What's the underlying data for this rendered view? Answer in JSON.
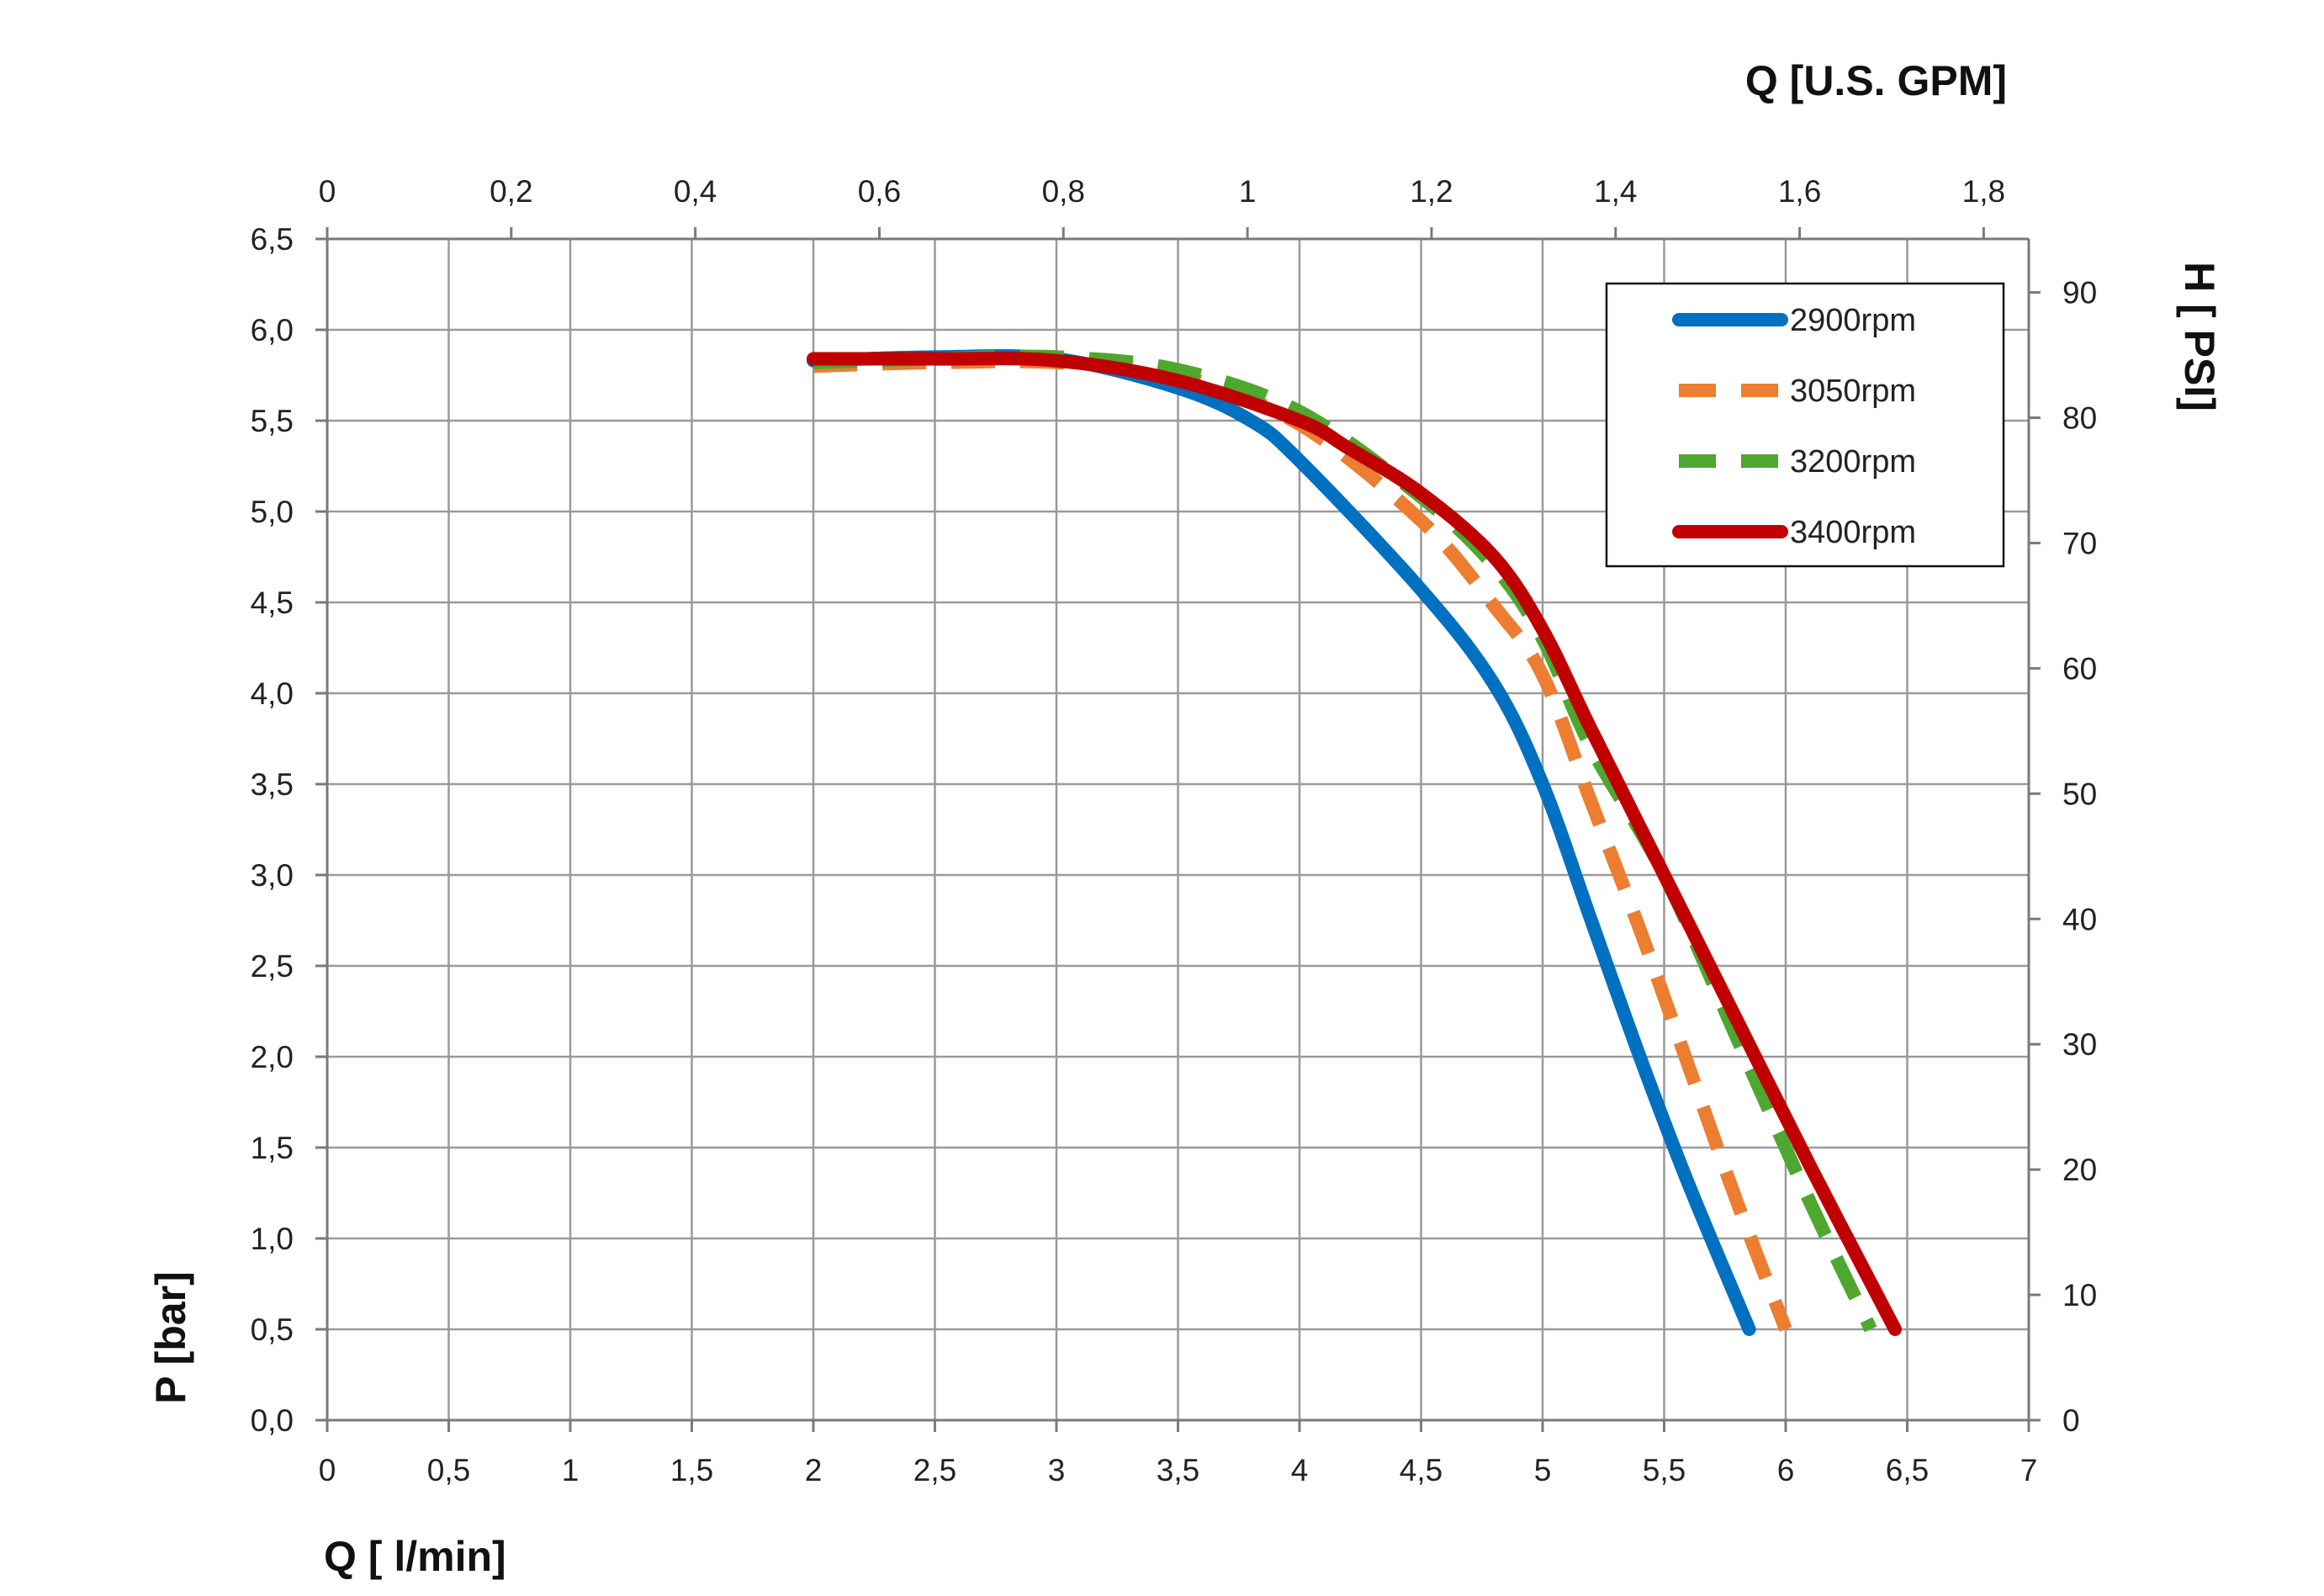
{
  "chart_data": {
    "type": "line",
    "x_bottom": {
      "label": "Q [ l/min]",
      "range": [
        0,
        7
      ],
      "ticks": [
        "0",
        "0,5",
        "1",
        "1,5",
        "2",
        "2,5",
        "3",
        "3,5",
        "4",
        "4,5",
        "5",
        "5,5",
        "6",
        "6,5",
        "7"
      ]
    },
    "x_top": {
      "label": "Q  [U.S. GPM]",
      "range": [
        0,
        1.849
      ],
      "ticks": [
        "0",
        "0,2",
        "0,4",
        "0,6",
        "0,8",
        "1",
        "1,2",
        "1,4",
        "1,6",
        "1,8"
      ],
      "tick_values": [
        0,
        0.2,
        0.4,
        0.6,
        0.8,
        1.0,
        1.2,
        1.4,
        1.6,
        1.8
      ]
    },
    "y_left": {
      "label": "P [bar]",
      "range": [
        0,
        6.5
      ],
      "ticks": [
        "0,0",
        "0,5",
        "1,0",
        "1,5",
        "2,0",
        "2,5",
        "3,0",
        "3,5",
        "4,0",
        "4,5",
        "5,0",
        "5,5",
        "6,0",
        "6,5"
      ]
    },
    "y_right": {
      "label": "H [ PSI]",
      "range": [
        0,
        94.27
      ],
      "ticks": [
        "0",
        "10",
        "20",
        "30",
        "40",
        "50",
        "60",
        "70",
        "80",
        "90"
      ],
      "tick_values": [
        0,
        10,
        20,
        30,
        40,
        50,
        60,
        70,
        80,
        90
      ]
    },
    "grid": true,
    "legend": {
      "position": "top-right"
    },
    "series": [
      {
        "name": "2900rpm",
        "color": "#0070C0",
        "dash": "solid",
        "x": [
          2.0,
          2.5,
          3.0,
          3.5,
          3.8,
          4.0,
          4.5,
          4.8,
          5.0,
          5.2,
          5.4,
          5.6,
          5.85
        ],
        "y": [
          5.83,
          5.85,
          5.84,
          5.68,
          5.5,
          5.28,
          4.57,
          4.05,
          3.5,
          2.75,
          2.0,
          1.3,
          0.5
        ]
      },
      {
        "name": "3050rpm",
        "color": "#ED7D31",
        "dash": "dashed",
        "x": [
          2.0,
          2.5,
          3.0,
          3.5,
          4.0,
          4.5,
          4.8,
          5.0,
          5.2,
          5.4,
          5.6,
          5.8,
          6.0
        ],
        "y": [
          5.8,
          5.82,
          5.82,
          5.75,
          5.48,
          4.95,
          4.48,
          4.1,
          3.4,
          2.7,
          1.95,
          1.2,
          0.5
        ]
      },
      {
        "name": "3200rpm",
        "color": "#4EA72E",
        "dash": "dashed",
        "x": [
          2.0,
          2.5,
          3.0,
          3.5,
          4.0,
          4.5,
          4.8,
          5.0,
          5.2,
          5.5,
          5.8,
          6.1,
          6.35
        ],
        "y": [
          5.82,
          5.84,
          5.85,
          5.78,
          5.55,
          5.08,
          4.7,
          4.3,
          3.7,
          3.0,
          2.1,
          1.2,
          0.5
        ]
      },
      {
        "name": "3400rpm",
        "color": "#C00000",
        "dash": "solid",
        "x": [
          2.0,
          2.5,
          3.0,
          3.5,
          4.0,
          4.2,
          4.5,
          4.8,
          5.0,
          5.2,
          5.5,
          5.8,
          6.1,
          6.45
        ],
        "y": [
          5.84,
          5.84,
          5.83,
          5.72,
          5.5,
          5.35,
          5.1,
          4.75,
          4.35,
          3.8,
          3.0,
          2.2,
          1.4,
          0.5
        ]
      }
    ]
  }
}
